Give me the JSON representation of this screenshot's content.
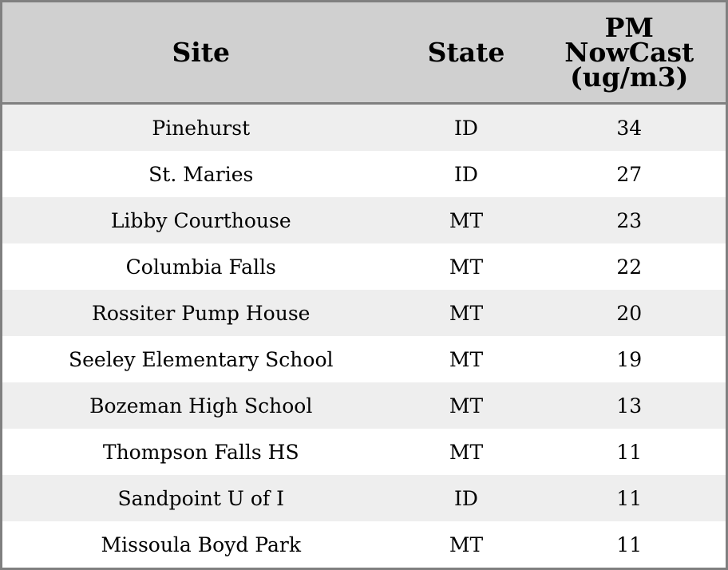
{
  "chart_data": {
    "type": "table",
    "columns": [
      "Site",
      "State",
      "PM NowCast (ug/m3)"
    ],
    "rows": [
      [
        "Pinehurst",
        "ID",
        "34"
      ],
      [
        "St. Maries",
        "ID",
        "27"
      ],
      [
        "Libby Courthouse",
        "MT",
        "23"
      ],
      [
        "Columbia Falls",
        "MT",
        "22"
      ],
      [
        "Rossiter Pump House",
        "MT",
        "20"
      ],
      [
        "Seeley Elementary School",
        "MT",
        "19"
      ],
      [
        "Bozeman High School",
        "MT",
        "13"
      ],
      [
        "Thompson Falls HS",
        "MT",
        "11"
      ],
      [
        "Sandpoint U of I",
        "ID",
        "11"
      ],
      [
        "Missoula Boyd Park",
        "MT",
        "11"
      ]
    ],
    "colors": {
      "header_bg": "#d0d0d0",
      "stripe": "#eeeeee",
      "border": "#808080"
    }
  }
}
